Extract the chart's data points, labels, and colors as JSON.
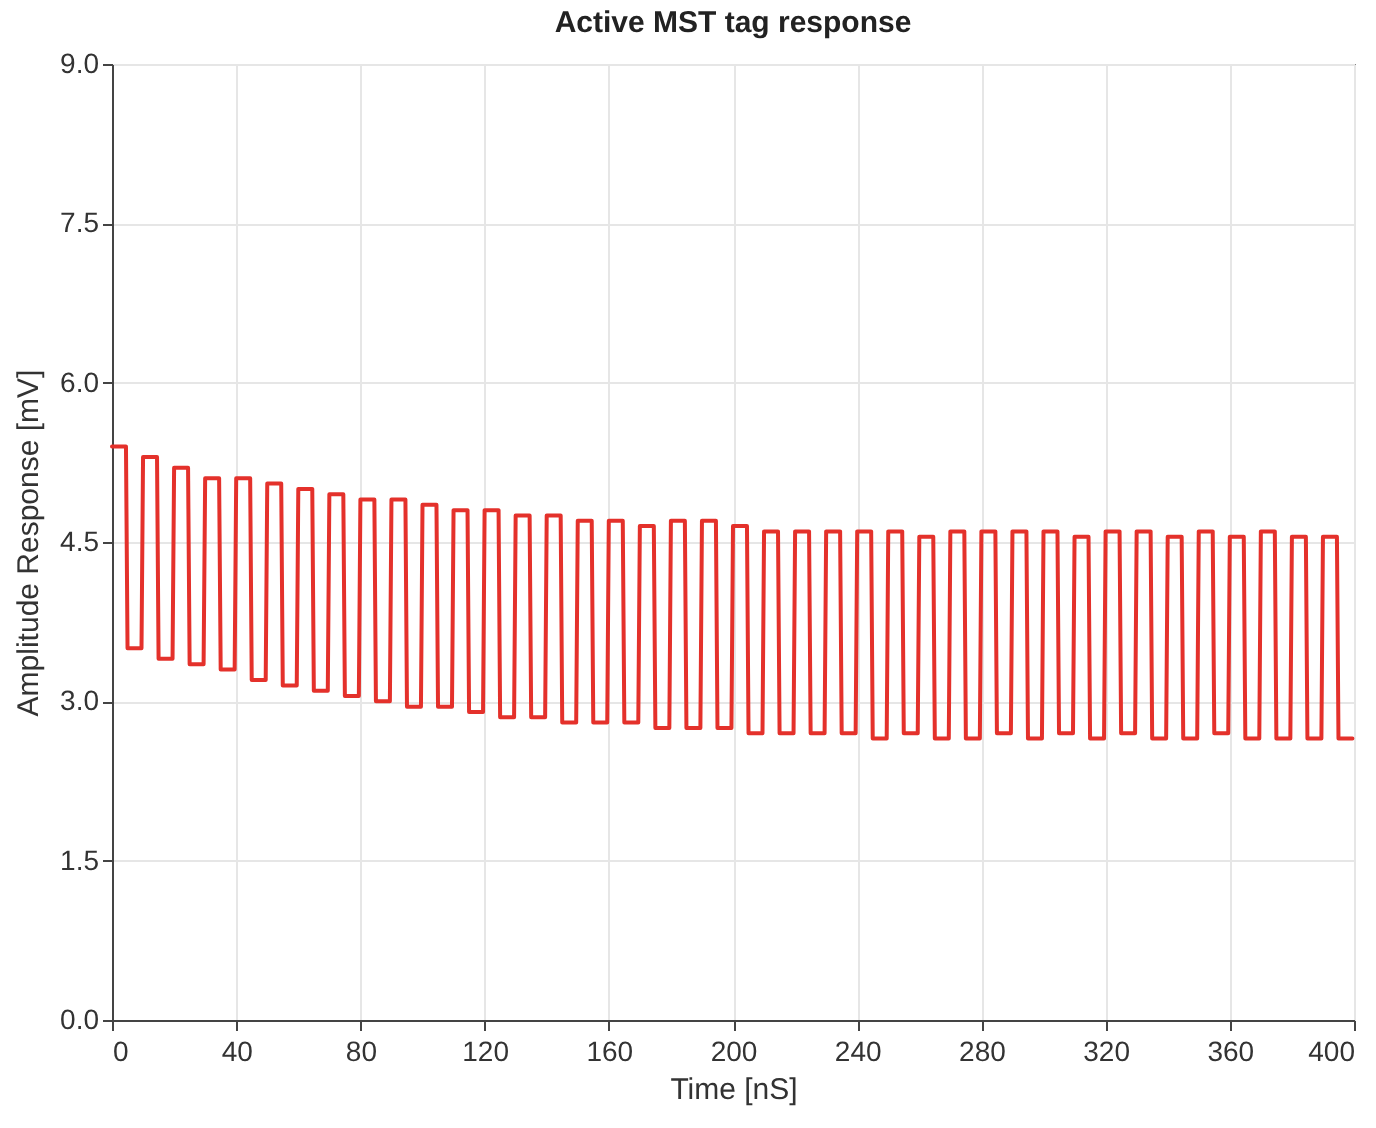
{
  "chart_data": {
    "type": "line",
    "title": "Active MST tag response",
    "xlabel": "Time [nS]",
    "ylabel": "Amplitude Response [mV]",
    "xlim": [
      0,
      400
    ],
    "xticks": [
      0,
      40,
      80,
      120,
      160,
      200,
      240,
      280,
      320,
      360,
      400
    ],
    "ylim": [
      0,
      9
    ],
    "yticks": [
      {
        "value": 0,
        "label": "0.0"
      },
      1.5,
      {
        "value": 3,
        "label": "3.0"
      },
      4.5,
      {
        "value": 6,
        "label": "6.0"
      },
      7.5,
      {
        "value": 9,
        "label": "9.0"
      }
    ],
    "grid": true,
    "line_style": "solid",
    "series": [
      {
        "color": "#e4312b",
        "x": [
          0,
          4.5,
          5,
          9.5,
          10,
          14.5,
          15,
          19.5,
          20,
          24.5,
          25,
          29.5,
          30,
          34.5,
          35,
          39.5,
          40,
          44.5,
          45,
          49.5,
          50,
          54.5,
          55,
          59.5,
          60,
          64.5,
          65,
          69.5,
          70,
          74.5,
          75,
          79.5,
          80,
          84.5,
          85,
          89.5,
          90,
          94.5,
          95,
          99.5,
          100,
          104.5,
          105,
          109.5,
          110,
          114.5,
          115,
          119.5,
          120,
          124.5,
          125,
          129.5,
          130,
          134.5,
          135,
          139.5,
          140,
          144.5,
          145,
          149.5,
          150,
          154.5,
          155,
          159.5,
          160,
          164.5,
          165,
          169.5,
          170,
          174.5,
          175,
          179.5,
          180,
          184.5,
          185,
          189.5,
          190,
          194.5,
          195,
          199.5,
          200,
          204.5,
          205,
          209.5,
          210,
          214.5,
          215,
          219.5,
          220,
          224.5,
          225,
          229.5,
          230,
          234.5,
          235,
          239.5,
          240,
          244.5,
          245,
          249.5,
          250,
          254.5,
          255,
          259.5,
          260,
          264.5,
          265,
          269.5,
          270,
          274.5,
          275,
          279.5,
          280,
          284.5,
          285,
          289.5,
          290,
          294.5,
          295,
          299.5,
          300,
          304.5,
          305,
          309.5,
          310,
          314.5,
          315,
          319.5,
          320,
          324.5,
          325,
          329.5,
          330,
          334.5,
          335,
          339.5,
          340,
          344.5,
          345,
          349.5,
          350,
          354.5,
          355,
          359.5,
          360,
          364.5,
          365,
          369.5,
          370,
          374.5,
          375,
          379.5,
          380,
          384.5,
          385,
          389.5,
          390,
          394.5,
          395,
          399.5
        ],
        "values": [
          5.4,
          5.4,
          3.5,
          3.5,
          5.3,
          5.3,
          3.4,
          3.4,
          5.2,
          5.2,
          3.35,
          3.35,
          5.1,
          5.1,
          3.3,
          3.3,
          5.1,
          5.1,
          3.2,
          3.2,
          5.05,
          5.05,
          3.15,
          3.15,
          5.0,
          5.0,
          3.1,
          3.1,
          4.95,
          4.95,
          3.05,
          3.05,
          4.9,
          4.9,
          3.0,
          3.0,
          4.9,
          4.9,
          2.95,
          2.95,
          4.85,
          4.85,
          2.95,
          2.95,
          4.8,
          4.8,
          2.9,
          2.9,
          4.8,
          4.8,
          2.85,
          2.85,
          4.75,
          4.75,
          2.85,
          2.85,
          4.75,
          4.75,
          2.8,
          2.8,
          4.7,
          4.7,
          2.8,
          2.8,
          4.7,
          4.7,
          2.8,
          2.8,
          4.65,
          4.65,
          2.75,
          2.75,
          4.7,
          4.7,
          2.75,
          2.75,
          4.7,
          4.7,
          2.75,
          2.75,
          4.65,
          4.65,
          2.7,
          2.7,
          4.6,
          4.6,
          2.7,
          2.7,
          4.6,
          4.6,
          2.7,
          2.7,
          4.6,
          4.6,
          2.7,
          2.7,
          4.6,
          4.6,
          2.65,
          2.65,
          4.6,
          4.6,
          2.7,
          2.7,
          4.55,
          4.55,
          2.65,
          2.65,
          4.6,
          4.6,
          2.65,
          2.65,
          4.6,
          4.6,
          2.7,
          2.7,
          4.6,
          4.6,
          2.65,
          2.65,
          4.6,
          4.6,
          2.7,
          2.7,
          4.55,
          4.55,
          2.65,
          2.65,
          4.6,
          4.6,
          2.7,
          2.7,
          4.6,
          4.6,
          2.65,
          2.65,
          4.55,
          4.55,
          2.65,
          2.65,
          4.6,
          4.6,
          2.7,
          2.7,
          4.55,
          4.55,
          2.65,
          2.65,
          4.6,
          4.6,
          2.65,
          2.65,
          4.55,
          4.55,
          2.65,
          2.65,
          4.55,
          4.55,
          2.65,
          2.65
        ]
      }
    ]
  }
}
